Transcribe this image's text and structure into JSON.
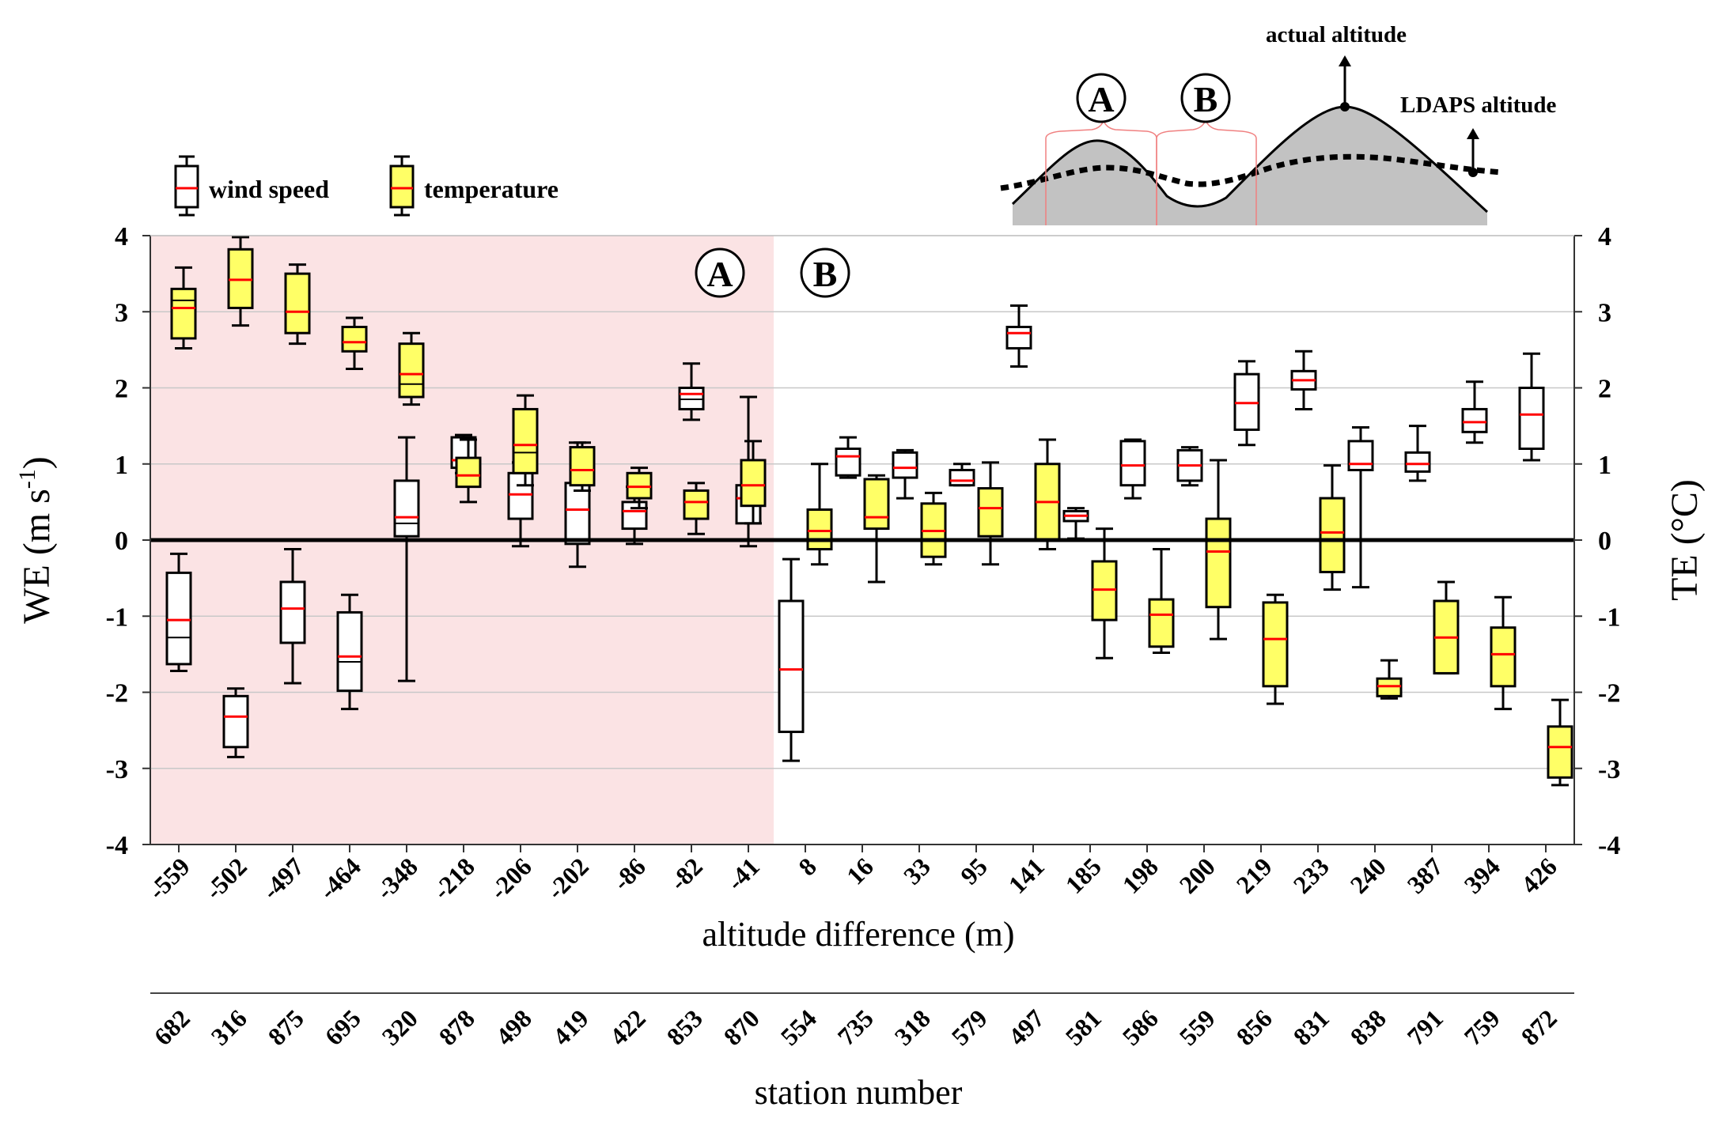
{
  "chart_data": {
    "type": "box",
    "ylabel_left": "WE (m s",
    "ylabel_left_sup": "-1",
    "ylabel_left_end": ")",
    "ylabel_right": "TE (°C)",
    "xlabel": "altitude difference (m)",
    "xlabel2": "station number",
    "ylim": [
      -4,
      4
    ],
    "yticks": [
      "4",
      "3",
      "2",
      "1",
      "0",
      "-1",
      "-2",
      "-3",
      "-4"
    ],
    "yticks_right": [
      "4",
      "3",
      "2",
      "1",
      "0",
      "-1",
      "-2",
      "-3",
      "-4"
    ],
    "legend": {
      "wind": "wind speed",
      "temp": "temperature"
    },
    "region_labels": {
      "a": "A",
      "b": "B"
    },
    "inset": {
      "actual": "actual altitude",
      "ldaps": "LDAPS altitude",
      "a": "A",
      "b": "B"
    },
    "categories": [
      "-559",
      "-502",
      "-497",
      "-464",
      "-348",
      "-218",
      "-206",
      "-202",
      "-86",
      "-82",
      "-41",
      "8",
      "16",
      "33",
      "95",
      "141",
      "185",
      "198",
      "200",
      "219",
      "233",
      "240",
      "387",
      "394",
      "426"
    ],
    "station_numbers": [
      "682",
      "316",
      "875",
      "695",
      "320",
      "878",
      "498",
      "419",
      "422",
      "853",
      "870",
      "554",
      "735",
      "318",
      "579",
      "497",
      "581",
      "586",
      "559",
      "856",
      "831",
      "838",
      "791",
      "759",
      "872"
    ],
    "region_a_count": 11,
    "colors": {
      "shade_a": "#fbe3e4",
      "temperature_fill": "#ffff66",
      "median": "#ff0000",
      "grid": "#c8c8c8"
    },
    "series": [
      {
        "name": "wind speed",
        "boxes": [
          {
            "min": -1.72,
            "q1": -1.63,
            "median": -1.05,
            "q3": -0.43,
            "max": -0.18,
            "median_alt": -1.28
          },
          {
            "min": -2.85,
            "q1": -2.72,
            "median": -2.32,
            "q3": -2.05,
            "max": -1.95
          },
          {
            "min": -1.88,
            "q1": -1.35,
            "median": -0.9,
            "q3": -0.55,
            "max": -0.12
          },
          {
            "min": -2.22,
            "q1": -1.98,
            "median": -1.53,
            "q3": -0.95,
            "max": -0.72,
            "median_alt": -1.6
          },
          {
            "min": -1.85,
            "q1": 0.05,
            "median": 0.3,
            "q3": 0.78,
            "max": 1.35,
            "median_alt": 0.22
          },
          {
            "min": 0.88,
            "q1": 0.95,
            "median": 1.05,
            "q3": 1.35,
            "max": 1.38
          },
          {
            "min": -0.08,
            "q1": 0.28,
            "median": 0.6,
            "q3": 0.88,
            "max": 1.02
          },
          {
            "min": -0.35,
            "q1": -0.05,
            "median": 0.4,
            "q3": 0.75,
            "max": 1.28
          },
          {
            "min": -0.05,
            "q1": 0.15,
            "median": 0.38,
            "q3": 0.5,
            "max": 0.7
          },
          {
            "min": 1.58,
            "q1": 1.72,
            "median": 1.92,
            "q3": 2.0,
            "max": 2.32,
            "median_alt": 1.85
          },
          {
            "min": -0.08,
            "q1": 0.22,
            "median": 0.55,
            "q3": 0.72,
            "max": 1.88
          }
        ]
      },
      {
        "name": "temperature",
        "boxes": [
          {
            "min": 2.52,
            "q1": 2.65,
            "median": 3.05,
            "q3": 3.3,
            "max": 3.58,
            "median_alt": 3.15
          },
          {
            "min": 2.82,
            "q1": 3.05,
            "median": 3.42,
            "q3": 3.82,
            "max": 3.98
          },
          {
            "min": 2.58,
            "q1": 2.72,
            "median": 3.0,
            "q3": 3.5,
            "max": 3.62
          },
          {
            "min": 2.25,
            "q1": 2.48,
            "median": 2.6,
            "q3": 2.8,
            "max": 2.92
          },
          {
            "min": 1.78,
            "q1": 1.88,
            "median": 2.18,
            "q3": 2.58,
            "max": 2.72,
            "median_alt": 2.05
          },
          {
            "min": 0.5,
            "q1": 0.7,
            "median": 0.85,
            "q3": 1.08,
            "max": 1.32
          },
          {
            "min": 0.72,
            "q1": 0.88,
            "median": 1.25,
            "q3": 1.72,
            "max": 1.9,
            "median_alt": 1.15
          },
          {
            "min": 0.65,
            "q1": 0.72,
            "median": 0.92,
            "q3": 1.22,
            "max": 1.28
          },
          {
            "min": 0.42,
            "q1": 0.55,
            "median": 0.7,
            "q3": 0.88,
            "max": 0.95
          },
          {
            "min": 0.08,
            "q1": 0.28,
            "median": 0.5,
            "q3": 0.65,
            "max": 0.75
          },
          {
            "min": 0.22,
            "q1": 0.45,
            "median": 0.72,
            "q3": 1.05,
            "max": 1.3
          }
        ]
      }
    ],
    "series_b": [
      {
        "type": "wind",
        "min": -2.9,
        "q1": -2.52,
        "median": -1.7,
        "q3": -0.8,
        "max": -0.25
      },
      {
        "type": "temp",
        "min": -0.32,
        "q1": -0.12,
        "median": 0.12,
        "q3": 0.4,
        "max": 1.0
      },
      {
        "type": "wind",
        "min": 0.82,
        "q1": 0.85,
        "median": 1.1,
        "q3": 1.2,
        "max": 1.35
      },
      {
        "type": "temp",
        "min": -0.55,
        "q1": 0.15,
        "median": 0.3,
        "q3": 0.8,
        "max": 0.85
      },
      {
        "type": "wind",
        "min": 0.55,
        "q1": 0.82,
        "median": 0.95,
        "q3": 1.15,
        "max": 1.18
      },
      {
        "type": "temp",
        "min": -0.32,
        "q1": -0.22,
        "median": 0.12,
        "q3": 0.48,
        "max": 0.62
      },
      {
        "type": "wind",
        "min": 0.72,
        "q1": 0.72,
        "median": 0.78,
        "q3": 0.92,
        "max": 1.0
      },
      {
        "type": "temp",
        "min": -0.32,
        "q1": 0.05,
        "median": 0.42,
        "q3": 0.68,
        "max": 1.02
      },
      {
        "type": "wind",
        "min": 2.28,
        "q1": 2.52,
        "median": 2.72,
        "q3": 2.8,
        "max": 3.08
      },
      {
        "type": "temp",
        "min": -0.12,
        "q1": 0.0,
        "median": 0.5,
        "q3": 1.0,
        "max": 1.32
      },
      {
        "type": "wind",
        "min": 0.02,
        "q1": 0.25,
        "median": 0.32,
        "q3": 0.38,
        "max": 0.42
      },
      {
        "type": "temp",
        "min": -1.55,
        "q1": -1.05,
        "median": -0.65,
        "q3": -0.28,
        "max": 0.15
      },
      {
        "type": "wind",
        "min": 0.55,
        "q1": 0.72,
        "median": 0.98,
        "q3": 1.3,
        "max": 1.32
      },
      {
        "type": "temp",
        "min": -1.48,
        "q1": -1.4,
        "median": -0.98,
        "q3": -0.78,
        "max": -0.12
      },
      {
        "type": "wind",
        "min": 0.72,
        "q1": 0.78,
        "median": 0.98,
        "q3": 1.18,
        "max": 1.22
      },
      {
        "type": "temp",
        "min": -1.3,
        "q1": -0.88,
        "median": -0.15,
        "q3": 0.28,
        "max": 1.05
      },
      {
        "type": "wind",
        "min": 1.25,
        "q1": 1.45,
        "median": 1.8,
        "q3": 2.18,
        "max": 2.35
      },
      {
        "type": "temp",
        "min": -2.15,
        "q1": -1.92,
        "median": -1.3,
        "q3": -0.82,
        "max": -0.72
      },
      {
        "type": "wind",
        "min": 1.72,
        "q1": 1.98,
        "median": 2.1,
        "q3": 2.22,
        "max": 2.48
      },
      {
        "type": "temp",
        "min": -0.65,
        "q1": -0.42,
        "median": 0.1,
        "q3": 0.55,
        "max": 0.98
      },
      {
        "type": "wind",
        "min": -0.62,
        "q1": 0.92,
        "median": 1.0,
        "q3": 1.3,
        "max": 1.48
      },
      {
        "type": "temp",
        "min": -2.08,
        "q1": -2.05,
        "median": -1.92,
        "q3": -1.82,
        "max": -1.58
      },
      {
        "type": "wind",
        "min": 0.78,
        "q1": 0.9,
        "median": 1.0,
        "q3": 1.15,
        "max": 1.5
      },
      {
        "type": "temp",
        "min": -1.75,
        "q1": -1.75,
        "median": -1.28,
        "q3": -0.8,
        "max": -0.55
      },
      {
        "type": "wind",
        "min": 1.28,
        "q1": 1.42,
        "median": 1.55,
        "q3": 1.72,
        "max": 2.08
      },
      {
        "type": "temp",
        "min": -2.22,
        "q1": -1.92,
        "median": -1.5,
        "q3": -1.15,
        "max": -0.75
      },
      {
        "type": "wind",
        "min": 1.05,
        "q1": 1.2,
        "median": 1.65,
        "q3": 2.0,
        "max": 2.45
      },
      {
        "type": "temp",
        "min": -3.22,
        "q1": -3.12,
        "median": -2.72,
        "q3": -2.45,
        "max": -2.1
      }
    ]
  }
}
